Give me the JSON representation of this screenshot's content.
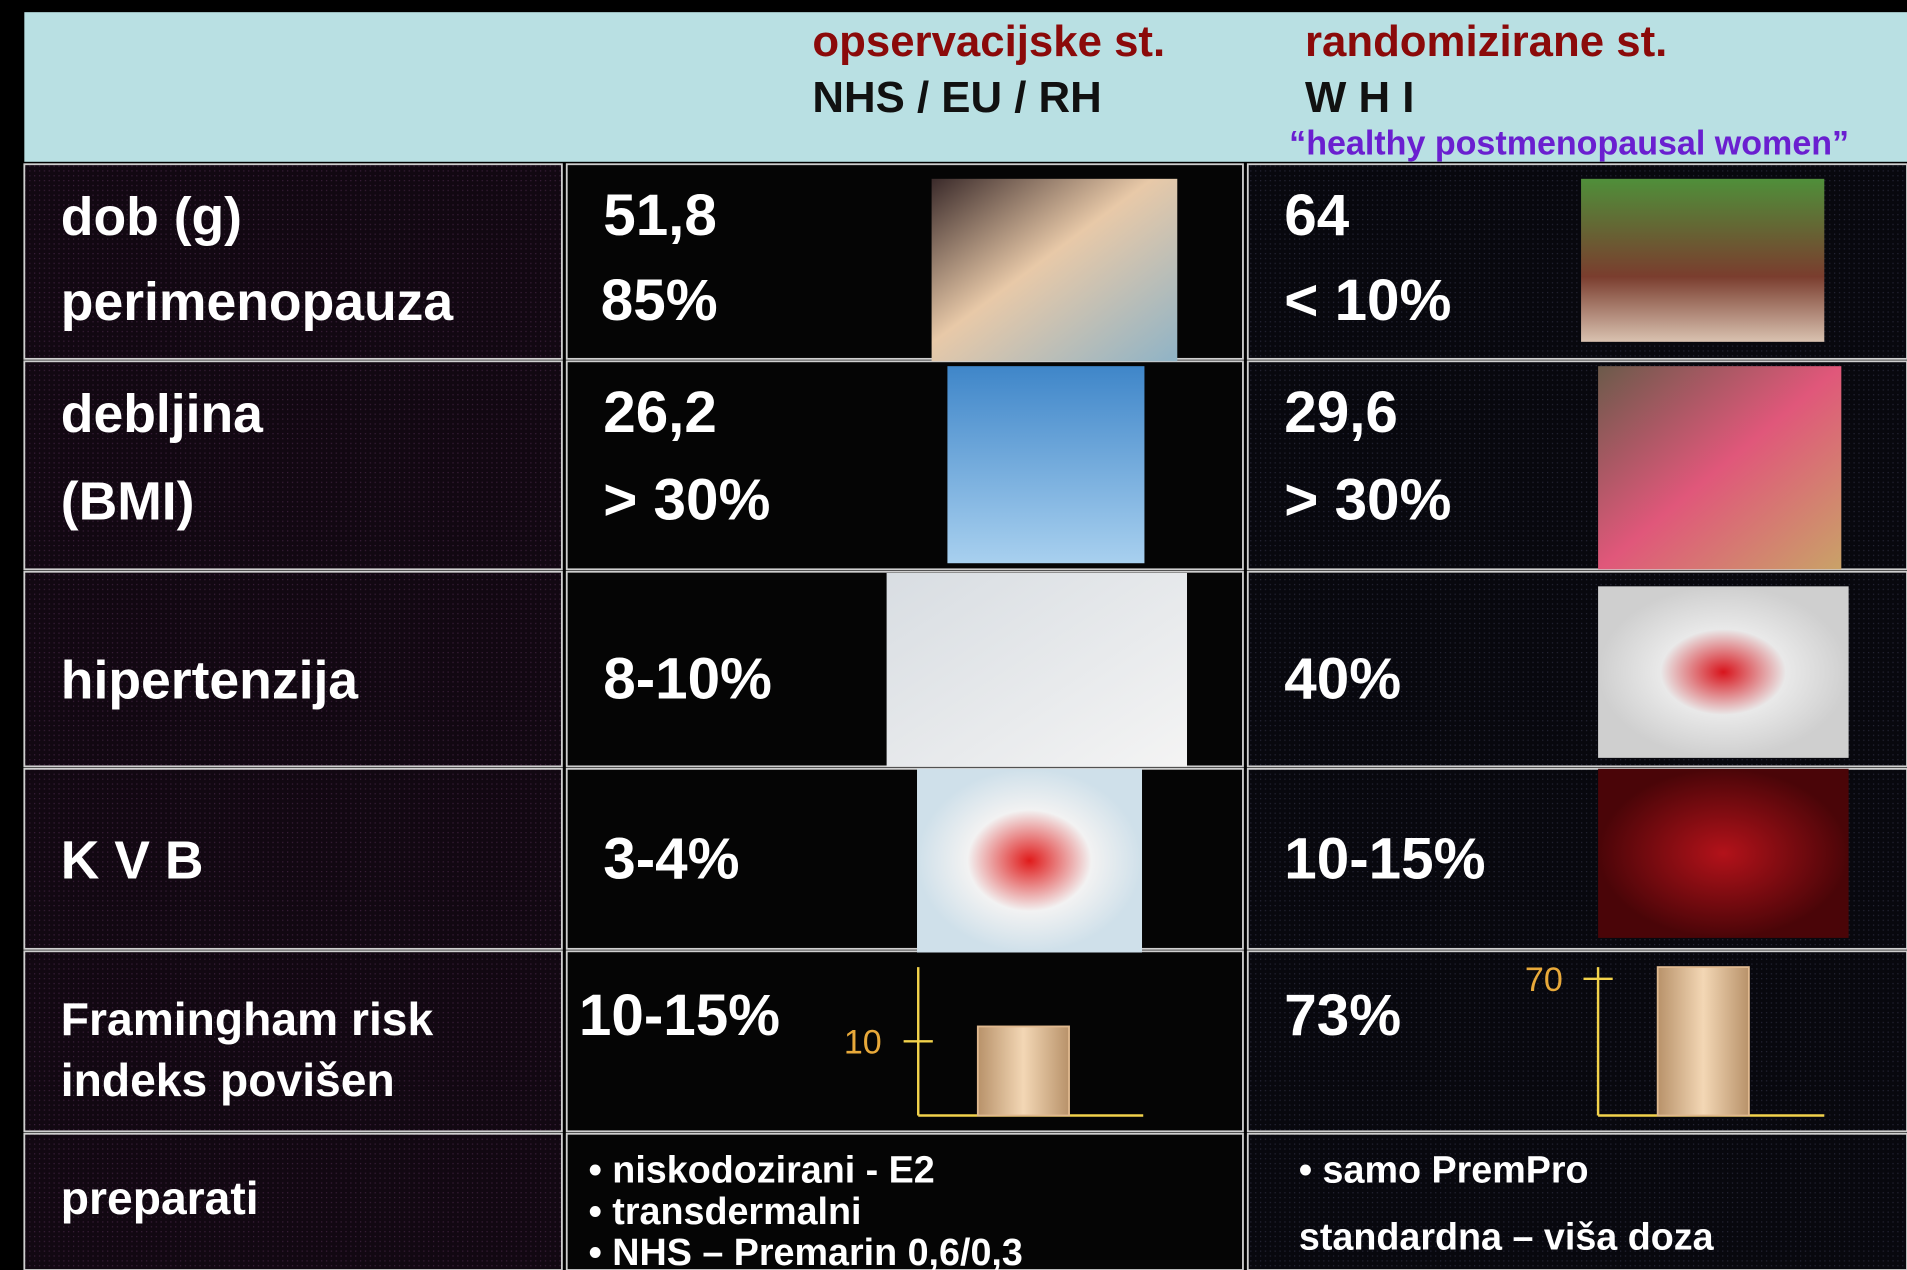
{
  "header": {
    "col1_title": "opservacijske st.",
    "col1_sub": "NHS / EU / RH",
    "col2_title": "randomizirane st.",
    "col2_sub": "W H I",
    "col2_note": "“healthy postmenopausal women”"
  },
  "rows": [
    {
      "label": [
        "dob (g)",
        "perimenopauza"
      ],
      "obs": [
        "51,8",
        "85%"
      ],
      "rand": [
        "64",
        "< 10%"
      ]
    },
    {
      "label": [
        "debljina",
        "(BMI)"
      ],
      "obs": [
        "26,2",
        "> 30%"
      ],
      "rand": [
        "29,6",
        "> 30%"
      ]
    },
    {
      "label": [
        "hipertenzija"
      ],
      "obs": [
        "8-10%"
      ],
      "rand": [
        "40%"
      ]
    },
    {
      "label": [
        "K V B"
      ],
      "obs": [
        "3-4%"
      ],
      "rand": [
        "10-15%"
      ]
    },
    {
      "label": [
        "Framingham risk",
        "indeks povišen"
      ],
      "obs": [
        "10-15%"
      ],
      "rand": [
        "73%"
      ]
    },
    {
      "label": [
        "preparati"
      ],
      "obs": [
        "• niskodozirani - E2",
        "• transdermalni",
        "• NHS – Premarin 0,6/0,3"
      ],
      "rand": [
        "• samo PremPro",
        "standardna – viša doza"
      ]
    }
  ],
  "mini_charts": [
    {
      "type": "bar",
      "ylim": [
        0,
        20
      ],
      "yticks": [
        10
      ],
      "values": [
        12
      ],
      "color": "#e0b98f"
    },
    {
      "type": "bar",
      "ylim": [
        0,
        76
      ],
      "yticks": [
        70
      ],
      "values": [
        76
      ],
      "color": "#e0b98f"
    }
  ]
}
